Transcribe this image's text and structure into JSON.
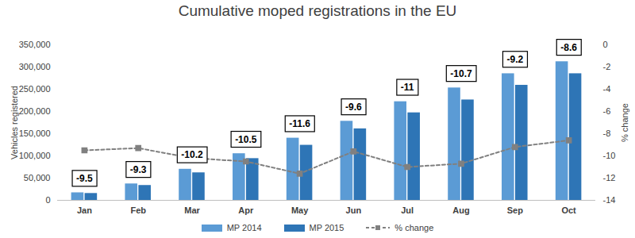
{
  "chart_data": {
    "type": "bar",
    "title": "Cumulative moped registrations in the EU",
    "categories": [
      "Jan",
      "Feb",
      "Mar",
      "Apr",
      "May",
      "Jun",
      "Jul",
      "Aug",
      "Sep",
      "Oct"
    ],
    "series": [
      {
        "name": "MP 2014",
        "color": "#5b9bd5",
        "values": [
          17000,
          37000,
          70000,
          105000,
          140000,
          178000,
          222000,
          253000,
          285000,
          312000
        ]
      },
      {
        "name": "MP 2015",
        "color": "#2e75b6",
        "values": [
          15500,
          33500,
          62000,
          94000,
          124000,
          161000,
          197000,
          226000,
          259000,
          285000
        ]
      },
      {
        "name": "% change",
        "type": "line",
        "axis": "y2",
        "color": "#808080",
        "marker": "square",
        "line_style": "dashed",
        "data_labels": true,
        "values": [
          -9.5,
          -9.3,
          -10.2,
          -10.5,
          -11.6,
          -9.6,
          -11,
          -10.7,
          -9.2,
          -8.6
        ]
      }
    ],
    "y_label": "Vehicles registered",
    "y2_label": "% change",
    "ylim": [
      0,
      350000
    ],
    "yticks": [
      0,
      {
        "value": 50000,
        "label": "50,000"
      },
      {
        "value": 100000,
        "label": "100,000"
      },
      {
        "value": 150000,
        "label": "150,000"
      },
      {
        "value": 200000,
        "label": "200,000"
      },
      {
        "value": 250000,
        "label": "250,000"
      },
      {
        "value": 300000,
        "label": "300,000"
      },
      {
        "value": 350000,
        "label": "350,000"
      }
    ],
    "y2lim": [
      -14,
      0
    ],
    "y2ticks": [
      -14,
      -12,
      -10,
      -8,
      -6,
      -4,
      -2,
      0
    ],
    "grid": false,
    "legend": "bottom"
  }
}
